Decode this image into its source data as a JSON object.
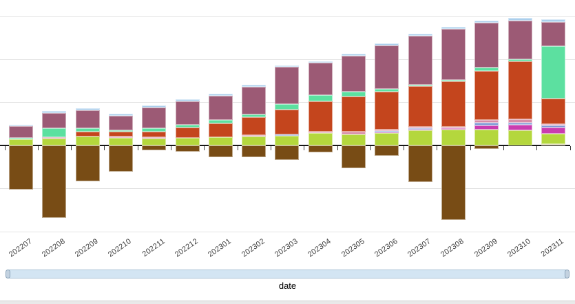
{
  "chart_data": {
    "type": "bar",
    "subtype": "stacked-vertical-with-negatives",
    "title": "",
    "xlabel": "date",
    "ylabel": "",
    "y_axis_labels_visible": false,
    "units": "pixels (y-axis unlabeled in screenshot; one gridline interval = 62.5 px)",
    "ylim": [
      -131,
      203
    ],
    "grid": "horizontal",
    "legend_position": "none",
    "categories": [
      "202207",
      "202208",
      "202209",
      "202210",
      "202211",
      "202212",
      "202301",
      "202302",
      "202303",
      "202304",
      "202305",
      "202306",
      "202307",
      "202308",
      "202309",
      "202310",
      "202311"
    ],
    "series": [
      {
        "name": "tan",
        "color": "#c9bd84",
        "values": [
          0,
          0,
          0,
          0,
          0,
          0,
          0,
          0,
          0,
          0,
          0,
          0,
          0,
          0,
          0,
          0,
          2
        ]
      },
      {
        "name": "lime",
        "color": "#b4d73d",
        "values": [
          9,
          10,
          13,
          11,
          10,
          11,
          12,
          13,
          14,
          18,
          16,
          18,
          22,
          23,
          23,
          22,
          15
        ]
      },
      {
        "name": "magenta",
        "color": "#ca3cb0",
        "values": [
          0,
          0,
          0,
          0,
          0,
          0,
          0,
          0,
          0,
          0,
          0,
          2,
          2,
          2,
          6,
          8,
          9
        ]
      },
      {
        "name": "periwinkle",
        "color": "#7e9ad6",
        "values": [
          0,
          0,
          0,
          0,
          0,
          0,
          0,
          0,
          2,
          0,
          0,
          1,
          1,
          0,
          4,
          3,
          3
        ]
      },
      {
        "name": "rose",
        "color": "#d88ba6",
        "values": [
          0,
          2,
          0,
          2,
          2,
          0,
          0,
          2,
          0,
          2,
          4,
          2,
          2,
          2,
          4,
          5,
          2
        ]
      },
      {
        "name": "red-orange",
        "color": "#c4451d",
        "values": [
          0,
          0,
          7,
          7,
          8,
          15,
          20,
          26,
          36,
          44,
          51,
          55,
          59,
          66,
          71,
          84,
          37
        ]
      },
      {
        "name": "mint",
        "color": "#5ce0a0",
        "values": [
          2,
          13,
          5,
          2,
          5,
          4,
          5,
          4,
          8,
          9,
          7,
          4,
          2,
          2,
          5,
          3,
          76
        ]
      },
      {
        "name": "mauve",
        "color": "#9c5a75",
        "values": [
          17,
          22,
          26,
          21,
          30,
          34,
          35,
          40,
          54,
          47,
          52,
          63,
          71,
          74,
          65,
          56,
          35
        ]
      },
      {
        "name": "sky-cap",
        "color": "#abcfec",
        "values": [
          2,
          3,
          3,
          3,
          3,
          3,
          3,
          3,
          2,
          2,
          3,
          3,
          3,
          3,
          3,
          4,
          4
        ]
      }
    ],
    "negative_series": {
      "name": "brown",
      "color": "#784c15",
      "values": [
        -64,
        -105,
        -52,
        -38,
        -7,
        -9,
        -17,
        -17,
        -21,
        -10,
        -33,
        -15,
        -53,
        -108,
        -5,
        0,
        0
      ]
    },
    "colors": {
      "axis_line": "#161616",
      "gridline": "#e3e3e3",
      "tick_label": "#3c3c3c",
      "scrollbar_fill": "#d3e5f3",
      "scrollbar_border": "#a9c2d6",
      "scrollbar_grip_fill": "#c3d2e0",
      "scrollbar_grip_border": "#8ba4ba"
    }
  }
}
